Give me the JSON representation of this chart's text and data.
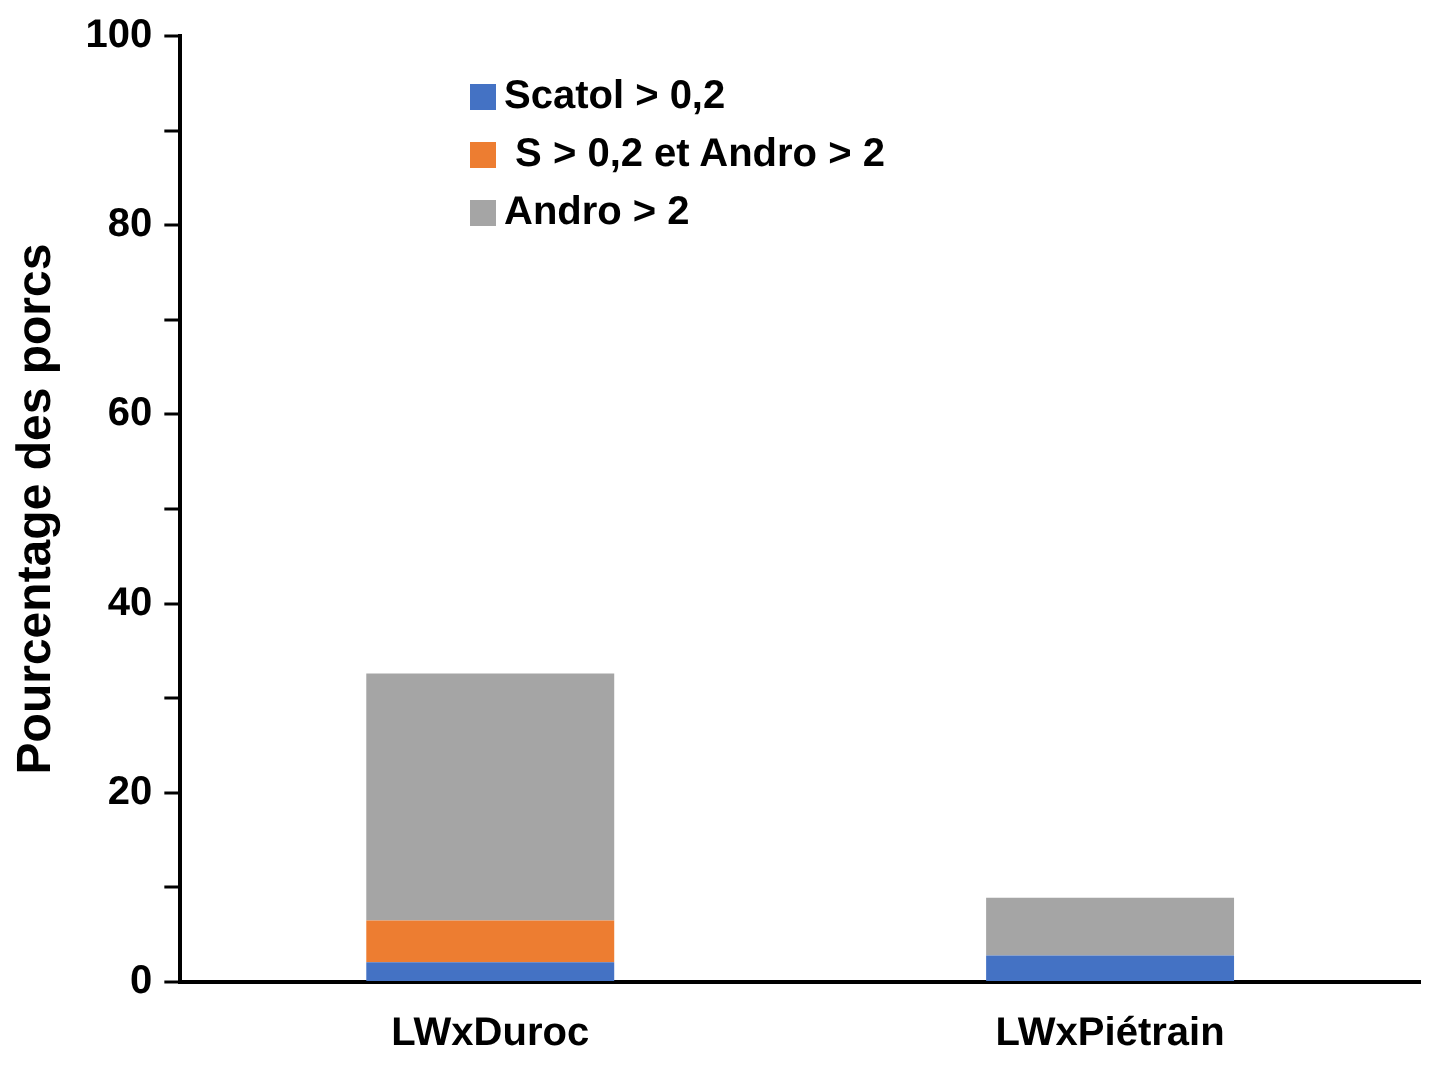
{
  "chart_data": {
    "type": "bar",
    "stacked": true,
    "ylabel": "Pourcentage des porcs",
    "categories": [
      "LWxDuroc",
      "LWxPiétrain"
    ],
    "series": [
      {
        "name": "Scatol > 0,2",
        "color": "#4472c4",
        "values": [
          2.1,
          2.8
        ]
      },
      {
        "name": " S > 0,2 et Andro > 2",
        "color": "#ed7d31",
        "values": [
          4.4,
          0
        ]
      },
      {
        "name": "Andro > 2",
        "color": "#a5a5a5",
        "values": [
          26.1,
          6.1
        ]
      }
    ],
    "ylim": [
      0,
      100
    ],
    "yticks": [
      0,
      {
        "value": 10,
        "label": null
      },
      20,
      {
        "value": 30,
        "label": null
      },
      40,
      {
        "value": 50,
        "label": null
      },
      60,
      {
        "value": 70,
        "label": null
      },
      80,
      {
        "value": 90,
        "label": null
      },
      100
    ],
    "grid": false,
    "legend": "top"
  }
}
